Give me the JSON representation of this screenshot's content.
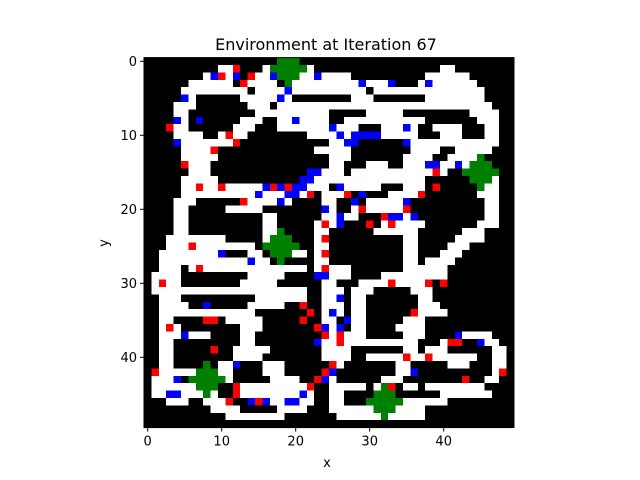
{
  "chart_data": {
    "type": "heatmap",
    "title": "Environment at Iteration 67",
    "xlabel": "x",
    "ylabel": "y",
    "grid": "off",
    "colors": {
      "wall": "#000000",
      "free": "#ffffff",
      "red": "#ff0000",
      "blue": "#0000ff",
      "green": "#008000"
    },
    "xlim": [
      -0.5,
      49.5
    ],
    "ylim": [
      49.5,
      -0.5
    ],
    "xticks": [
      0,
      10,
      20,
      30,
      40
    ],
    "yticks": [
      0,
      10,
      20,
      30,
      40
    ],
    "xtick_labels": [
      "0",
      "10",
      "20",
      "30",
      "40"
    ],
    "ytick_labels": [
      "0",
      "10",
      "20",
      "30",
      "40"
    ],
    "free_cells_by_row": [
      [],
      [
        [
          10,
          11
        ],
        [
          16,
          16
        ],
        [
          21,
          22
        ],
        [
          40,
          41
        ]
      ],
      [
        [
          8,
          12
        ],
        [
          15,
          17
        ],
        [
          21,
          27
        ],
        [
          38,
          43
        ]
      ],
      [
        [
          6,
          11
        ],
        [
          14,
          17
        ],
        [
          20,
          33
        ],
        [
          37,
          44
        ]
      ],
      [
        [
          5,
          13
        ],
        [
          15,
          29
        ],
        [
          31,
          42
        ],
        [
          43,
          45
        ]
      ],
      [
        [
          5,
          6
        ],
        [
          13,
          19
        ],
        [
          28,
          30
        ],
        [
          38,
          45
        ]
      ],
      [
        [
          4,
          6
        ],
        [
          14,
          16
        ],
        [
          18,
          27
        ],
        [
          28,
          44
        ],
        [
          45,
          46
        ]
      ],
      [
        [
          4,
          5
        ],
        [
          15,
          24
        ],
        [
          30,
          34
        ],
        [
          44,
          47
        ]
      ],
      [
        [
          4,
          5
        ],
        [
          13,
          15
        ],
        [
          18,
          24
        ],
        [
          27,
          37
        ],
        [
          45,
          47
        ]
      ],
      [
        [
          4,
          5
        ],
        [
          12,
          14
        ],
        [
          18,
          28
        ],
        [
          32,
          36
        ],
        [
          39,
          42
        ],
        [
          46,
          47
        ]
      ],
      [
        [
          4,
          7
        ],
        [
          10,
          13
        ],
        [
          22,
          36
        ],
        [
          40,
          42
        ],
        [
          46,
          47
        ]
      ],
      [
        [
          4,
          11
        ],
        [
          25,
          28
        ],
        [
          36,
          39
        ],
        [
          40,
          45
        ],
        [
          46,
          47
        ]
      ],
      [
        [
          5,
          9
        ],
        [
          23,
          27
        ],
        [
          36,
          39
        ],
        [
          42,
          44
        ],
        [
          45,
          46
        ]
      ],
      [
        [
          5,
          9
        ],
        [
          25,
          27
        ],
        [
          35,
          38
        ],
        [
          41,
          45
        ]
      ],
      [
        [
          6,
          8
        ],
        [
          25,
          26
        ],
        [
          30,
          32
        ],
        [
          35,
          45
        ]
      ],
      [
        [
          6,
          8
        ],
        [
          22,
          26
        ],
        [
          28,
          34
        ],
        [
          33,
          40
        ],
        [
          43,
          46
        ]
      ],
      [
        [
          5,
          9
        ],
        [
          21,
          26
        ],
        [
          27,
          37
        ],
        [
          45,
          47
        ]
      ],
      [
        [
          5,
          15
        ],
        [
          17,
          24
        ],
        [
          26,
          31
        ],
        [
          35,
          37
        ],
        [
          45,
          47
        ]
      ],
      [
        [
          5,
          22
        ],
        [
          24,
          27
        ],
        [
          33,
          37
        ],
        [
          45,
          47
        ]
      ],
      [
        [
          4,
          6
        ],
        [
          13,
          19
        ],
        [
          24,
          25
        ],
        [
          30,
          35
        ],
        [
          46,
          47
        ]
      ],
      [
        [
          4,
          5
        ],
        [
          11,
          15
        ],
        [
          24,
          25
        ],
        [
          28,
          35
        ],
        [
          46,
          47
        ]
      ],
      [
        [
          4,
          5
        ],
        [
          16,
          17
        ],
        [
          24,
          28
        ],
        [
          32,
          35
        ],
        [
          46,
          47
        ]
      ],
      [
        [
          4,
          5
        ],
        [
          16,
          17
        ],
        [
          23,
          26
        ],
        [
          32,
          37
        ],
        [
          45,
          47
        ]
      ],
      [
        [
          4,
          5
        ],
        [
          16,
          17
        ],
        [
          23,
          24
        ],
        [
          31,
          36
        ],
        [
          43,
          45
        ]
      ],
      [
        [
          3,
          10
        ],
        [
          16,
          19
        ],
        [
          23,
          24
        ],
        [
          35,
          36
        ],
        [
          42,
          45
        ]
      ],
      [
        [
          3,
          14
        ],
        [
          17,
          19
        ],
        [
          23,
          24
        ],
        [
          35,
          36
        ],
        [
          41,
          43
        ]
      ],
      [
        [
          2,
          10
        ],
        [
          14,
          15
        ],
        [
          20,
          21
        ],
        [
          23,
          24
        ],
        [
          35,
          36
        ],
        [
          40,
          42
        ]
      ],
      [
        [
          2,
          5
        ],
        [
          6,
          16
        ],
        [
          23,
          24
        ],
        [
          35,
          36
        ],
        [
          38,
          41
        ]
      ],
      [
        [
          2,
          4
        ],
        [
          6,
          21
        ],
        [
          23,
          27
        ],
        [
          35,
          37
        ],
        [
          38,
          40
        ]
      ],
      [
        [
          1,
          4
        ],
        [
          14,
          18
        ],
        [
          23,
          27
        ],
        [
          32,
          40
        ]
      ],
      [
        [
          1,
          4
        ],
        [
          13,
          17
        ],
        [
          24,
          25
        ],
        [
          29,
          38
        ]
      ],
      [
        [
          1,
          21
        ],
        [
          24,
          26
        ],
        [
          28,
          30
        ],
        [
          36,
          38
        ]
      ],
      [
        [
          2,
          4
        ],
        [
          15,
          21
        ],
        [
          24,
          26
        ],
        [
          28,
          29
        ],
        [
          37,
          38
        ]
      ],
      [
        [
          2,
          5
        ],
        [
          14,
          18
        ],
        [
          24,
          26
        ],
        [
          28,
          29
        ],
        [
          37,
          39
        ]
      ],
      [
        [
          2,
          14
        ],
        [
          24,
          26
        ],
        [
          28,
          29
        ],
        [
          36,
          40
        ]
      ],
      [
        [
          2,
          3
        ],
        [
          11,
          15
        ],
        [
          24,
          25
        ],
        [
          28,
          29
        ],
        [
          35,
          37
        ]
      ],
      [
        [
          2,
          4
        ],
        [
          13,
          15
        ],
        [
          23,
          26
        ],
        [
          28,
          29
        ],
        [
          34,
          37
        ]
      ],
      [
        [
          2,
          8
        ],
        [
          13,
          14
        ],
        [
          24,
          29
        ],
        [
          35,
          37
        ],
        [
          42,
          46
        ]
      ],
      [
        [
          2,
          3
        ],
        [
          13,
          14
        ],
        [
          23,
          27
        ],
        [
          28,
          36
        ],
        [
          40,
          42
        ],
        [
          46,
          47
        ]
      ],
      [
        [
          2,
          3
        ],
        [
          12,
          16
        ],
        [
          24,
          27
        ],
        [
          35,
          36
        ],
        [
          38,
          40
        ],
        [
          47,
          48
        ]
      ],
      [
        [
          2,
          3
        ],
        [
          12,
          15
        ],
        [
          24,
          27
        ],
        [
          30,
          44
        ],
        [
          47,
          48
        ]
      ],
      [
        [
          2,
          3
        ],
        [
          10,
          12
        ],
        [
          16,
          18
        ],
        [
          25,
          26
        ],
        [
          34,
          35
        ],
        [
          41,
          43
        ],
        [
          47,
          48
        ]
      ],
      [
        [
          2,
          11
        ],
        [
          16,
          18
        ],
        [
          24,
          25
        ],
        [
          34,
          35
        ],
        [
          47,
          48
        ]
      ],
      [
        [
          1,
          3
        ],
        [
          8,
          11
        ],
        [
          17,
          20
        ],
        [
          23,
          25
        ],
        [
          32,
          34
        ],
        [
          46,
          47
        ]
      ],
      [
        [
          1,
          9
        ],
        [
          12,
          22
        ],
        [
          25,
          29
        ],
        [
          31,
          33
        ],
        [
          35,
          36
        ],
        [
          38,
          45
        ]
      ],
      [
        [
          1,
          9
        ],
        [
          12,
          22
        ],
        [
          25,
          26
        ],
        [
          40,
          46
        ]
      ],
      [
        [
          3,
          5
        ],
        [
          8,
          11
        ],
        [
          17,
          22
        ],
        [
          25,
          26
        ],
        [
          35,
          40
        ]
      ],
      [
        [
          9,
          12
        ],
        [
          18,
          21
        ],
        [
          25,
          37
        ]
      ],
      [
        [
          11,
          18
        ],
        [
          26,
          37
        ]
      ],
      []
    ],
    "red_cells": [
      [
        12,
        1
      ],
      [
        10,
        2
      ],
      [
        14,
        2
      ],
      [
        13,
        3
      ],
      [
        3,
        9
      ],
      [
        4,
        11
      ],
      [
        11,
        10
      ],
      [
        12,
        11
      ],
      [
        9,
        12
      ],
      [
        5,
        14
      ],
      [
        7,
        17
      ],
      [
        10,
        17
      ],
      [
        17,
        17
      ],
      [
        19,
        17
      ],
      [
        13,
        19
      ],
      [
        22,
        18
      ],
      [
        27,
        18
      ],
      [
        24,
        20
      ],
      [
        24,
        22
      ],
      [
        29,
        20
      ],
      [
        32,
        21
      ],
      [
        30,
        22
      ],
      [
        33,
        22
      ],
      [
        35,
        20
      ],
      [
        37,
        18
      ],
      [
        39,
        17
      ],
      [
        39,
        15
      ],
      [
        43,
        15
      ],
      [
        6,
        25
      ],
      [
        7,
        28
      ],
      [
        24,
        24
      ],
      [
        24,
        26
      ],
      [
        24,
        28
      ],
      [
        2,
        30
      ],
      [
        21,
        33
      ],
      [
        21,
        35
      ],
      [
        22,
        34
      ],
      [
        23,
        36
      ],
      [
        24,
        37
      ],
      [
        26,
        37
      ],
      [
        26,
        38
      ],
      [
        33,
        30
      ],
      [
        36,
        34
      ],
      [
        38,
        30
      ],
      [
        40,
        30
      ],
      [
        41,
        38
      ],
      [
        42,
        38
      ],
      [
        35,
        40
      ],
      [
        38,
        40
      ],
      [
        33,
        44
      ],
      [
        43,
        43
      ],
      [
        48,
        42
      ],
      [
        1,
        42
      ],
      [
        9,
        39
      ],
      [
        8,
        35
      ],
      [
        9,
        35
      ],
      [
        3,
        36
      ],
      [
        12,
        44
      ],
      [
        12,
        45
      ],
      [
        11,
        46
      ],
      [
        16,
        46
      ],
      [
        15,
        46
      ],
      [
        22,
        44
      ],
      [
        23,
        43
      ],
      [
        24,
        42
      ],
      [
        25,
        41
      ]
    ],
    "blue_cells": [
      [
        9,
        2
      ],
      [
        12,
        2
      ],
      [
        17,
        2
      ],
      [
        23,
        2
      ],
      [
        29,
        3
      ],
      [
        33,
        3
      ],
      [
        38,
        3
      ],
      [
        19,
        4
      ],
      [
        18,
        5
      ],
      [
        5,
        5
      ],
      [
        4,
        8
      ],
      [
        7,
        8
      ],
      [
        20,
        8
      ],
      [
        25,
        9
      ],
      [
        26,
        10
      ],
      [
        28,
        10
      ],
      [
        29,
        10
      ],
      [
        30,
        10
      ],
      [
        31,
        10
      ],
      [
        35,
        11
      ],
      [
        4,
        11
      ],
      [
        27,
        11
      ],
      [
        28,
        11
      ],
      [
        35,
        9
      ],
      [
        38,
        14
      ],
      [
        39,
        14
      ],
      [
        42,
        14
      ],
      [
        44,
        14
      ],
      [
        22,
        15
      ],
      [
        23,
        15
      ],
      [
        21,
        16
      ],
      [
        22,
        16
      ],
      [
        16,
        17
      ],
      [
        18,
        17
      ],
      [
        21,
        17
      ],
      [
        20,
        17
      ],
      [
        15,
        18
      ],
      [
        19,
        18
      ],
      [
        20,
        18
      ],
      [
        18,
        19
      ],
      [
        26,
        17
      ],
      [
        28,
        19
      ],
      [
        29,
        18
      ],
      [
        35,
        19
      ],
      [
        34,
        21
      ],
      [
        36,
        21
      ],
      [
        24,
        20
      ],
      [
        26,
        21
      ],
      [
        26,
        22
      ],
      [
        33,
        21
      ],
      [
        10,
        26
      ],
      [
        14,
        27
      ],
      [
        24,
        29
      ],
      [
        23,
        29
      ],
      [
        26,
        32
      ],
      [
        25,
        34
      ],
      [
        27,
        35
      ],
      [
        24,
        36
      ],
      [
        26,
        36
      ],
      [
        42,
        37
      ],
      [
        45,
        38
      ],
      [
        8,
        33
      ],
      [
        5,
        37
      ],
      [
        4,
        43
      ],
      [
        3,
        45
      ],
      [
        4,
        45
      ],
      [
        12,
        41
      ],
      [
        23,
        38
      ],
      [
        25,
        42
      ],
      [
        24,
        43
      ],
      [
        16,
        46
      ],
      [
        14,
        46
      ],
      [
        20,
        46
      ],
      [
        21,
        45
      ],
      [
        19,
        46
      ],
      [
        36,
        42
      ]
    ],
    "green_plus_centers": [
      [
        19,
        1
      ],
      [
        45,
        15
      ],
      [
        18,
        25
      ],
      [
        8,
        43
      ],
      [
        32,
        46
      ]
    ]
  }
}
